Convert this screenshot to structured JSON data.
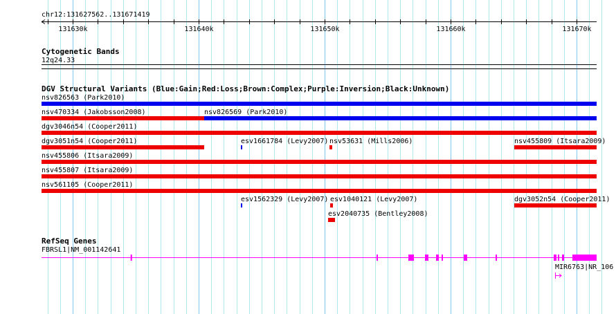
{
  "ruler": {
    "location": "chr12:131627562..131671419",
    "ticks": [
      "131630k",
      "131640k",
      "131650k",
      "131660k",
      "131670k"
    ],
    "tick_values": [
      131630000,
      131640000,
      131650000,
      131660000,
      131670000
    ]
  },
  "view": {
    "start": 131627527,
    "end": 131671593
  },
  "cytobands": {
    "title": "Cytogenetic Bands",
    "band": "12q24.33"
  },
  "dgv": {
    "title": "DGV Structural Variants (Blue:Gain;Red:Loss;Brown:Complex;Purple:Inversion;Black:Unknown)",
    "colors": {
      "gain": "#0000ee",
      "loss": "#ee0000"
    },
    "rows": [
      [
        {
          "label": "nsv826563 (Park2010)",
          "type": "gain",
          "start": 131627527,
          "end": 131671593
        }
      ],
      [
        {
          "label": "nsv470334 (Jakobsson2008)",
          "type": "loss",
          "start": 131627527,
          "end": 131640440
        },
        {
          "label": "nsv826569 (Park2010)",
          "type": "gain",
          "start": 131640440,
          "end": 131671593
        }
      ],
      [
        {
          "label": "dgv3046n54 (Cooper2011)",
          "type": "loss",
          "start": 131627527,
          "end": 131671593
        }
      ],
      [
        {
          "label": "dgv3051n54 (Cooper2011)",
          "type": "loss",
          "start": 131627527,
          "end": 131640440
        },
        {
          "label": "esv1661784 (Levy2007)",
          "type": "gain",
          "start": 131643352,
          "end": 131643460
        },
        {
          "label": "nsv53631 (Mills2006)",
          "type": "loss",
          "start": 131650385,
          "end": 131650604
        },
        {
          "label": "nsv455809 (Itsara2009)",
          "type": "loss",
          "start": 131665055,
          "end": 131671593
        }
      ],
      [
        {
          "label": "nsv455806 (Itsara2009)",
          "type": "loss",
          "start": 131627527,
          "end": 131671593
        }
      ],
      [
        {
          "label": "nsv455807 (Itsara2009)",
          "type": "loss",
          "start": 131627527,
          "end": 131671593
        }
      ],
      [
        {
          "label": "nsv561105 (Cooper2011)",
          "type": "loss",
          "start": 131627527,
          "end": 131671593
        }
      ],
      [
        {
          "label": "esv1562329 (Levy2007)",
          "type": "gain",
          "start": 131643352,
          "end": 131643460
        },
        {
          "label": "esv1040121 (Levy2007)",
          "type": "loss",
          "start": 131650440,
          "end": 131650660
        },
        {
          "label": "dgv3052n54 (Cooper2011)",
          "type": "loss",
          "start": 131665055,
          "end": 131671593
        }
      ],
      [
        {
          "label": "esv2040735 (Bentley2008)",
          "type": "loss",
          "start": 131650275,
          "end": 131650824
        }
      ]
    ]
  },
  "refseq": {
    "title": "RefSeq Genes",
    "color": "#ff00ff",
    "genes": [
      {
        "label": "FBRSL1|NM_001142641",
        "start": 131627527,
        "end": 131671593,
        "exons": [
          [
            131634600,
            131634700
          ],
          [
            131654120,
            131654230
          ],
          [
            131656648,
            131657088
          ],
          [
            131657967,
            131658242
          ],
          [
            131658846,
            131659066
          ],
          [
            131659286,
            131659396
          ],
          [
            131661044,
            131661319
          ],
          [
            131663571,
            131663681
          ],
          [
            131668187,
            131668407
          ],
          [
            131668516,
            131668626
          ],
          [
            131668846,
            131669011
          ],
          [
            131669670,
            131671593
          ]
        ]
      },
      {
        "label": "MIR6763|NR_106",
        "start": 131668270,
        "end": 131668340,
        "exons": []
      }
    ]
  }
}
